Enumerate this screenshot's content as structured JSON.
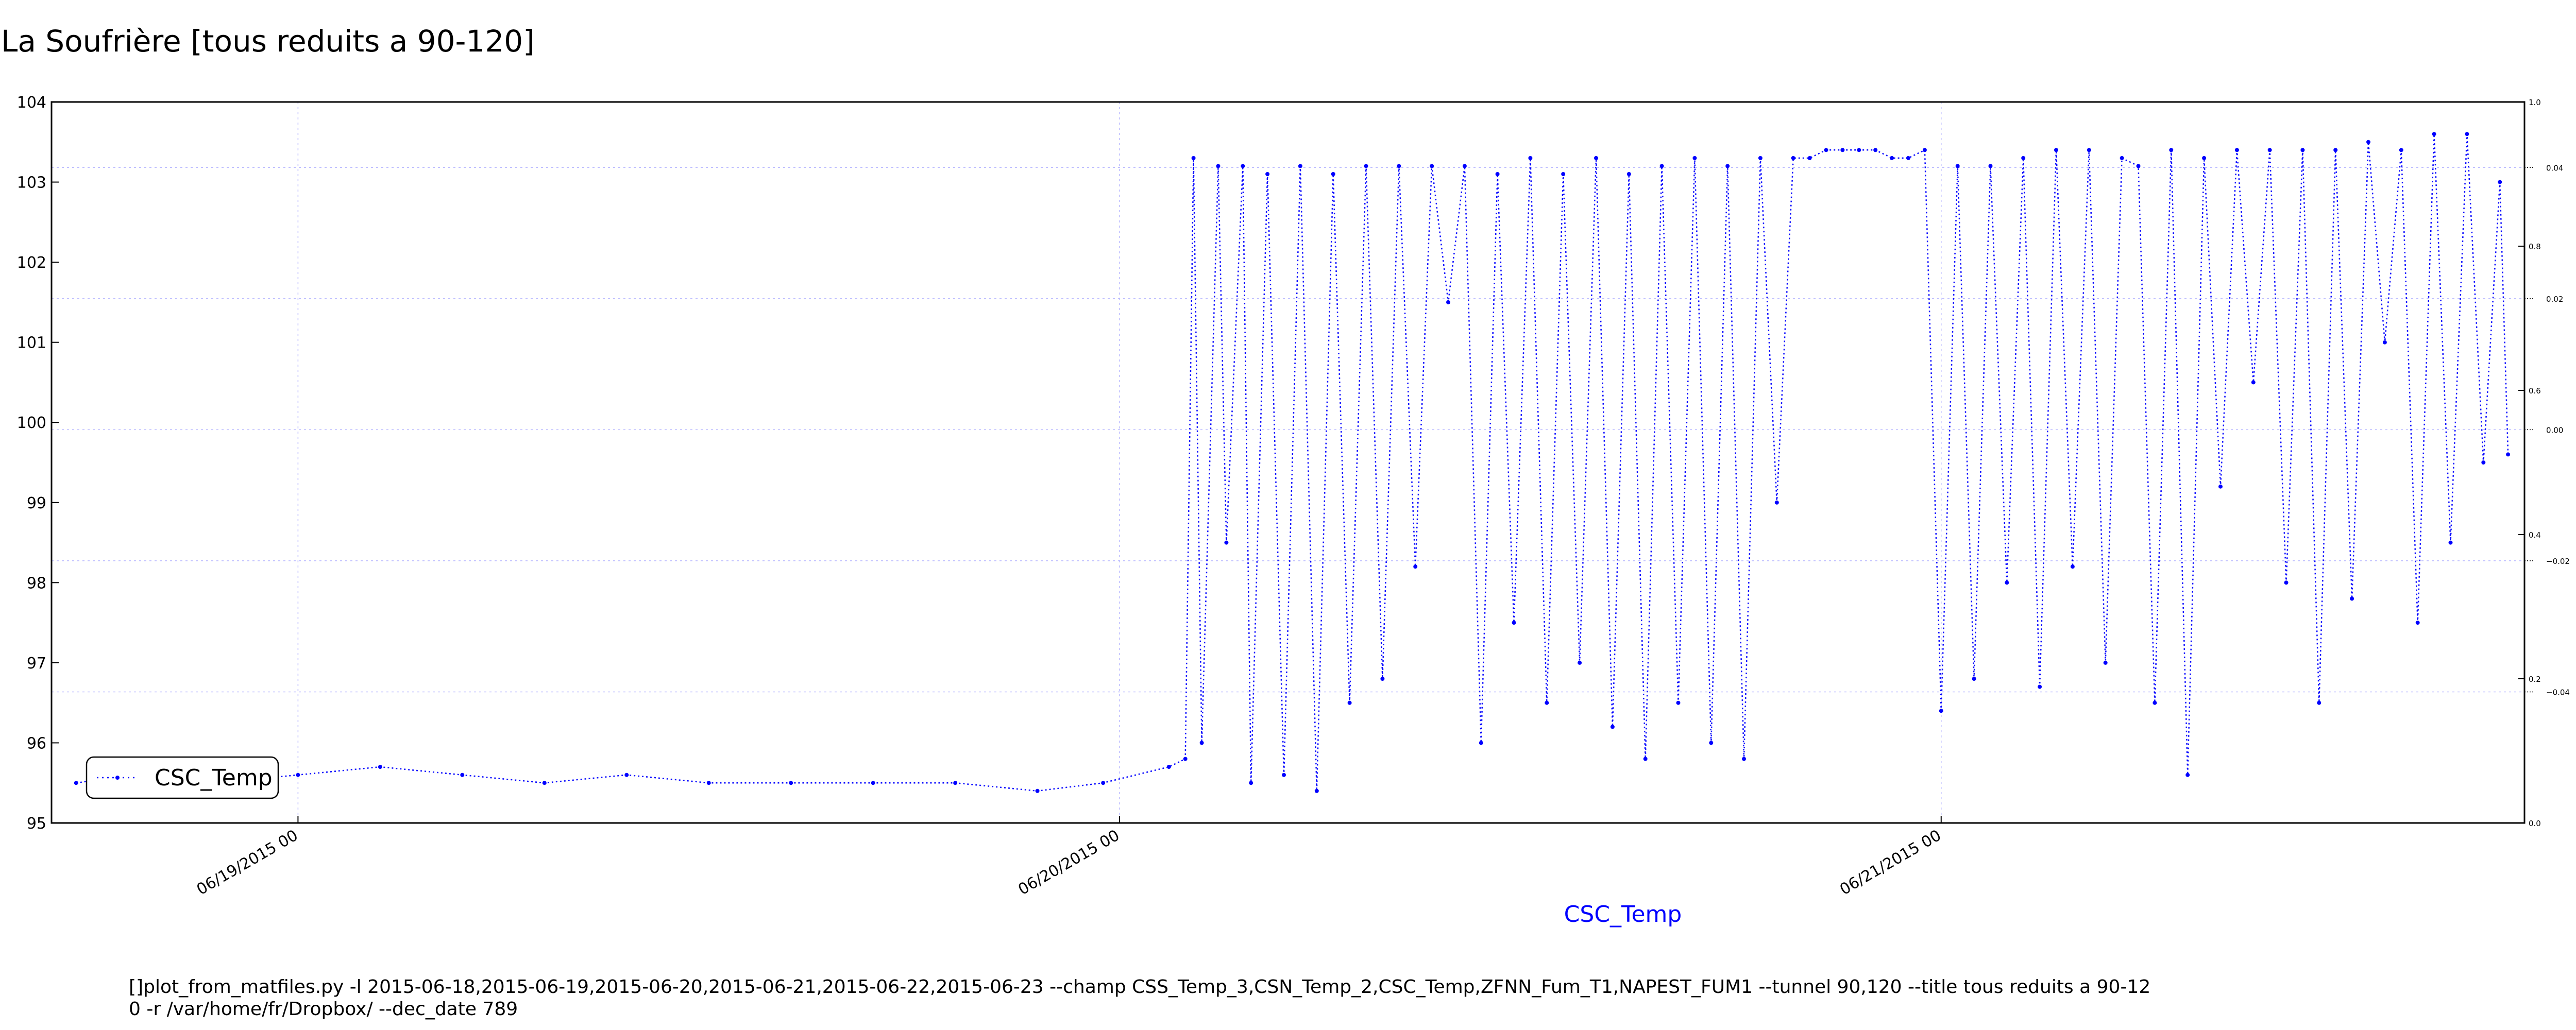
{
  "chart_data": {
    "type": "line",
    "title": "La Soufrière [tous reduits a 90-120]",
    "xlabel": "CSC_Temp",
    "ylabel": "",
    "y_left": {
      "ticks": [
        "95",
        "96",
        "97",
        "98",
        "99",
        "100",
        "101",
        "102",
        "103",
        "104"
      ],
      "ylim": [
        95,
        104
      ]
    },
    "y_right_outer": {
      "ticks": [
        "0.0",
        "0.2",
        "0.4",
        "0.6",
        "0.8",
        "1.0"
      ],
      "ylim": [
        0,
        1
      ]
    },
    "y_right_inner": {
      "ticks": [
        "−0.04",
        "−0.02",
        "0.00",
        "0.02",
        "0.04"
      ],
      "ylim": [
        -0.06,
        0.05
      ]
    },
    "x_ticks": [
      {
        "label": "06/19/2015 00",
        "day": 0
      },
      {
        "label": "06/20/2015 00",
        "day": 1
      },
      {
        "label": "06/21/2015 00",
        "day": 2
      }
    ],
    "xlim_days": [
      -0.3,
      2.71
    ],
    "grid": true,
    "legend": {
      "placement": "lower-left",
      "entries": [
        "CSC_Temp"
      ]
    },
    "series": [
      {
        "name": "CSC_Temp",
        "color": "#0000ff",
        "style": "dotted line with point markers",
        "x_days": [
          -0.27,
          -0.2,
          -0.1,
          0.0,
          0.1,
          0.2,
          0.3,
          0.4,
          0.5,
          0.6,
          0.7,
          0.8,
          0.9,
          0.98,
          1.06,
          1.08,
          1.09,
          1.1,
          1.12,
          1.13,
          1.15,
          1.16,
          1.18,
          1.2,
          1.22,
          1.24,
          1.26,
          1.28,
          1.3,
          1.32,
          1.34,
          1.36,
          1.38,
          1.4,
          1.42,
          1.44,
          1.46,
          1.48,
          1.5,
          1.52,
          1.54,
          1.56,
          1.58,
          1.6,
          1.62,
          1.64,
          1.66,
          1.68,
          1.7,
          1.72,
          1.74,
          1.76,
          1.78,
          1.8,
          1.82,
          1.84,
          1.86,
          1.88,
          1.9,
          1.92,
          1.94,
          1.96,
          1.98,
          2.0,
          2.02,
          2.04,
          2.06,
          2.08,
          2.1,
          2.12,
          2.14,
          2.16,
          2.18,
          2.2,
          2.22,
          2.24,
          2.26,
          2.28,
          2.3,
          2.32,
          2.34,
          2.36,
          2.38,
          2.4,
          2.42,
          2.44,
          2.46,
          2.48,
          2.5,
          2.52,
          2.54,
          2.56,
          2.58,
          2.6,
          2.62,
          2.64,
          2.66,
          2.68,
          2.69
        ],
        "values": [
          95.5,
          95.6,
          95.5,
          95.6,
          95.7,
          95.6,
          95.5,
          95.6,
          95.5,
          95.5,
          95.5,
          95.5,
          95.4,
          95.5,
          95.7,
          95.8,
          103.3,
          96.0,
          103.2,
          98.5,
          103.2,
          95.5,
          103.1,
          95.6,
          103.2,
          95.4,
          103.1,
          96.5,
          103.2,
          96.8,
          103.2,
          98.2,
          103.2,
          101.5,
          103.2,
          96.0,
          103.1,
          97.5,
          103.3,
          96.5,
          103.1,
          97.0,
          103.3,
          96.2,
          103.1,
          95.8,
          103.2,
          96.5,
          103.3,
          96.0,
          103.2,
          95.8,
          103.3,
          99.0,
          103.3,
          103.3,
          103.4,
          103.4,
          103.4,
          103.4,
          103.3,
          103.3,
          103.4,
          96.4,
          103.2,
          96.8,
          103.2,
          98.0,
          103.3,
          96.7,
          103.4,
          98.2,
          103.4,
          97.0,
          103.3,
          103.2,
          96.5,
          103.4,
          95.6,
          103.3,
          99.2,
          103.4,
          100.5,
          103.4,
          98.0,
          103.4,
          96.5,
          103.4,
          97.8,
          103.5,
          101.0,
          103.4,
          97.5,
          103.6,
          98.5,
          103.6,
          99.5,
          103.0,
          99.6
        ]
      }
    ],
    "footer_text": "[]plot_from_matfiles.py -l 2015-06-18,2015-06-19,2015-06-20,2015-06-21,2015-06-22,2015-06-23 --champ CSS_Temp_3,CSN_Temp_2,CSC_Temp,ZFNN_Fum_T1,NAPEST_FUM1 --tunnel 90,120 --title tous reduits a 90-12\n0 -r /var/home/fr/Dropbox/ --dec_date 789"
  }
}
